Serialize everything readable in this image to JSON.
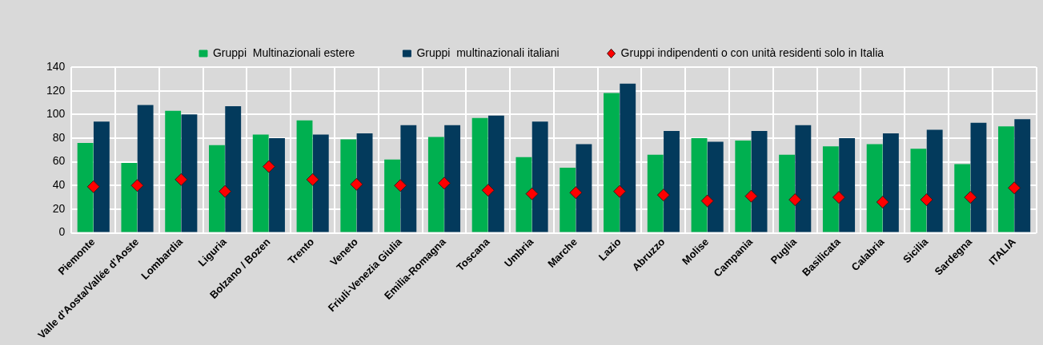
{
  "chart_data": {
    "type": "bar",
    "categories": [
      "Piemonte",
      "Valle d'Aosta/Vallée d'Aoste",
      "Lombardia",
      "Liguria",
      "Bolzano / Bozen",
      "Trento",
      "Veneto",
      "Friuli-Venezia Giulia",
      "Emilia-Romagna",
      "Toscana",
      "Umbria",
      "Marche",
      "Lazio",
      "Abruzzo",
      "Molise",
      "Campania",
      "Puglia",
      "Basilicata",
      "Calabria",
      "Sicilia",
      "Sardegna",
      "ITALIA"
    ],
    "series": [
      {
        "name": "Gruppi  Multinazionali estere",
        "color": "#00b050",
        "values": [
          76,
          59,
          103,
          74,
          83,
          95,
          79,
          62,
          81,
          97,
          64,
          55,
          118,
          66,
          80,
          78,
          66,
          73,
          75,
          71,
          58,
          90
        ]
      },
      {
        "name": "Gruppi  multinazionali italiani",
        "color": "#033a5c",
        "values": [
          94,
          108,
          100,
          107,
          80,
          83,
          84,
          91,
          91,
          99,
          94,
          75,
          126,
          86,
          77,
          86,
          91,
          80,
          84,
          87,
          93,
          96
        ]
      },
      {
        "name": "Gruppi indipendenti o con unità residenti solo in Italia",
        "color": "#ff0000",
        "type": "scatter",
        "marker": "diamond",
        "values": [
          39,
          40,
          45,
          35,
          56,
          45,
          41,
          40,
          42,
          36,
          33,
          34,
          35,
          32,
          27,
          31,
          28,
          30,
          26,
          28,
          30,
          38
        ]
      }
    ],
    "ylim": [
      0,
      140
    ],
    "yticks": [
      0,
      20,
      40,
      60,
      80,
      100,
      120,
      140
    ],
    "grid": true,
    "legend": "top"
  }
}
